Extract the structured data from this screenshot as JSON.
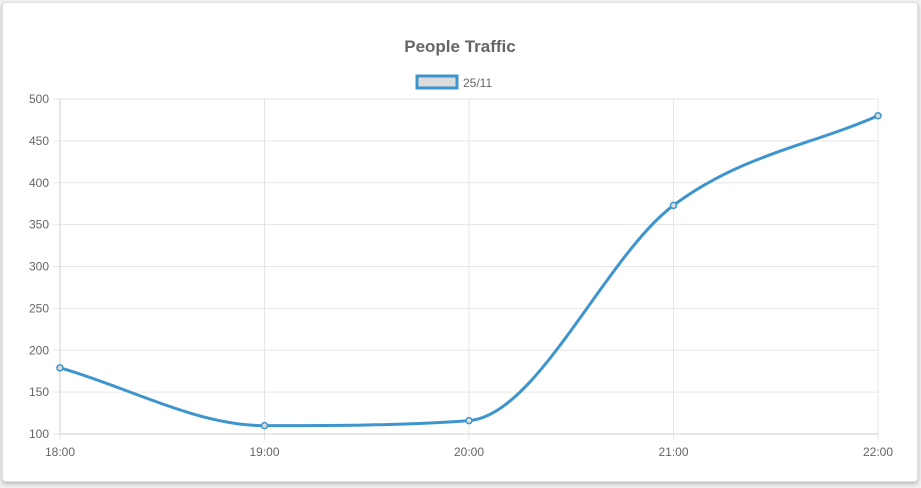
{
  "chart_data": {
    "type": "line",
    "title": "People Traffic",
    "xlabel": "",
    "ylabel": "",
    "categories": [
      "18:00",
      "19:00",
      "20:00",
      "21:00",
      "22:00"
    ],
    "ylim": [
      100,
      500
    ],
    "yticks": [
      100,
      150,
      200,
      250,
      300,
      350,
      400,
      450,
      500
    ],
    "yticklabels": [
      "100",
      "150",
      "200",
      "250",
      "300",
      "350",
      "400",
      "450",
      "500"
    ],
    "grid": true,
    "legend_position": "top-center",
    "series": [
      {
        "name": "25/11",
        "values": [
          179,
          110,
          116,
          373,
          480
        ],
        "color": "#3e95cd",
        "fill": "#dcdcdc"
      }
    ]
  }
}
